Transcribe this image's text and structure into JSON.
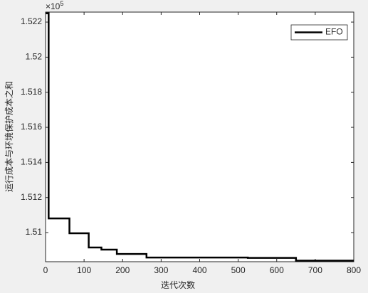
{
  "chart_data": {
    "type": "line",
    "xlabel": "迭代次数",
    "ylabel": "运行成本与环境保护成本之和",
    "y_multiplier": {
      "base": "×10",
      "power": "5"
    },
    "x": [
      1,
      8,
      8,
      62,
      62,
      112,
      112,
      145,
      145,
      185,
      185,
      262,
      262,
      525,
      525,
      650,
      650,
      800
    ],
    "series": [
      {
        "name": "EFO",
        "color": "#000000",
        "values": [
          1.5225,
          1.5225,
          1.51081,
          1.51081,
          1.50996,
          1.50996,
          1.50915,
          1.50915,
          1.50903,
          1.50903,
          1.50878,
          1.50878,
          1.50858,
          1.50858,
          1.50856,
          1.50856,
          1.5084,
          1.5084
        ]
      }
    ],
    "xlim": [
      0,
      800
    ],
    "xticks": [
      0,
      100,
      200,
      300,
      400,
      500,
      600,
      700,
      800
    ],
    "ylim": [
      1.50834,
      1.52257
    ],
    "yticks": [
      1.51,
      1.512,
      1.514,
      1.516,
      1.518,
      1.52,
      1.522
    ],
    "legend": "top-right",
    "grid": false
  }
}
